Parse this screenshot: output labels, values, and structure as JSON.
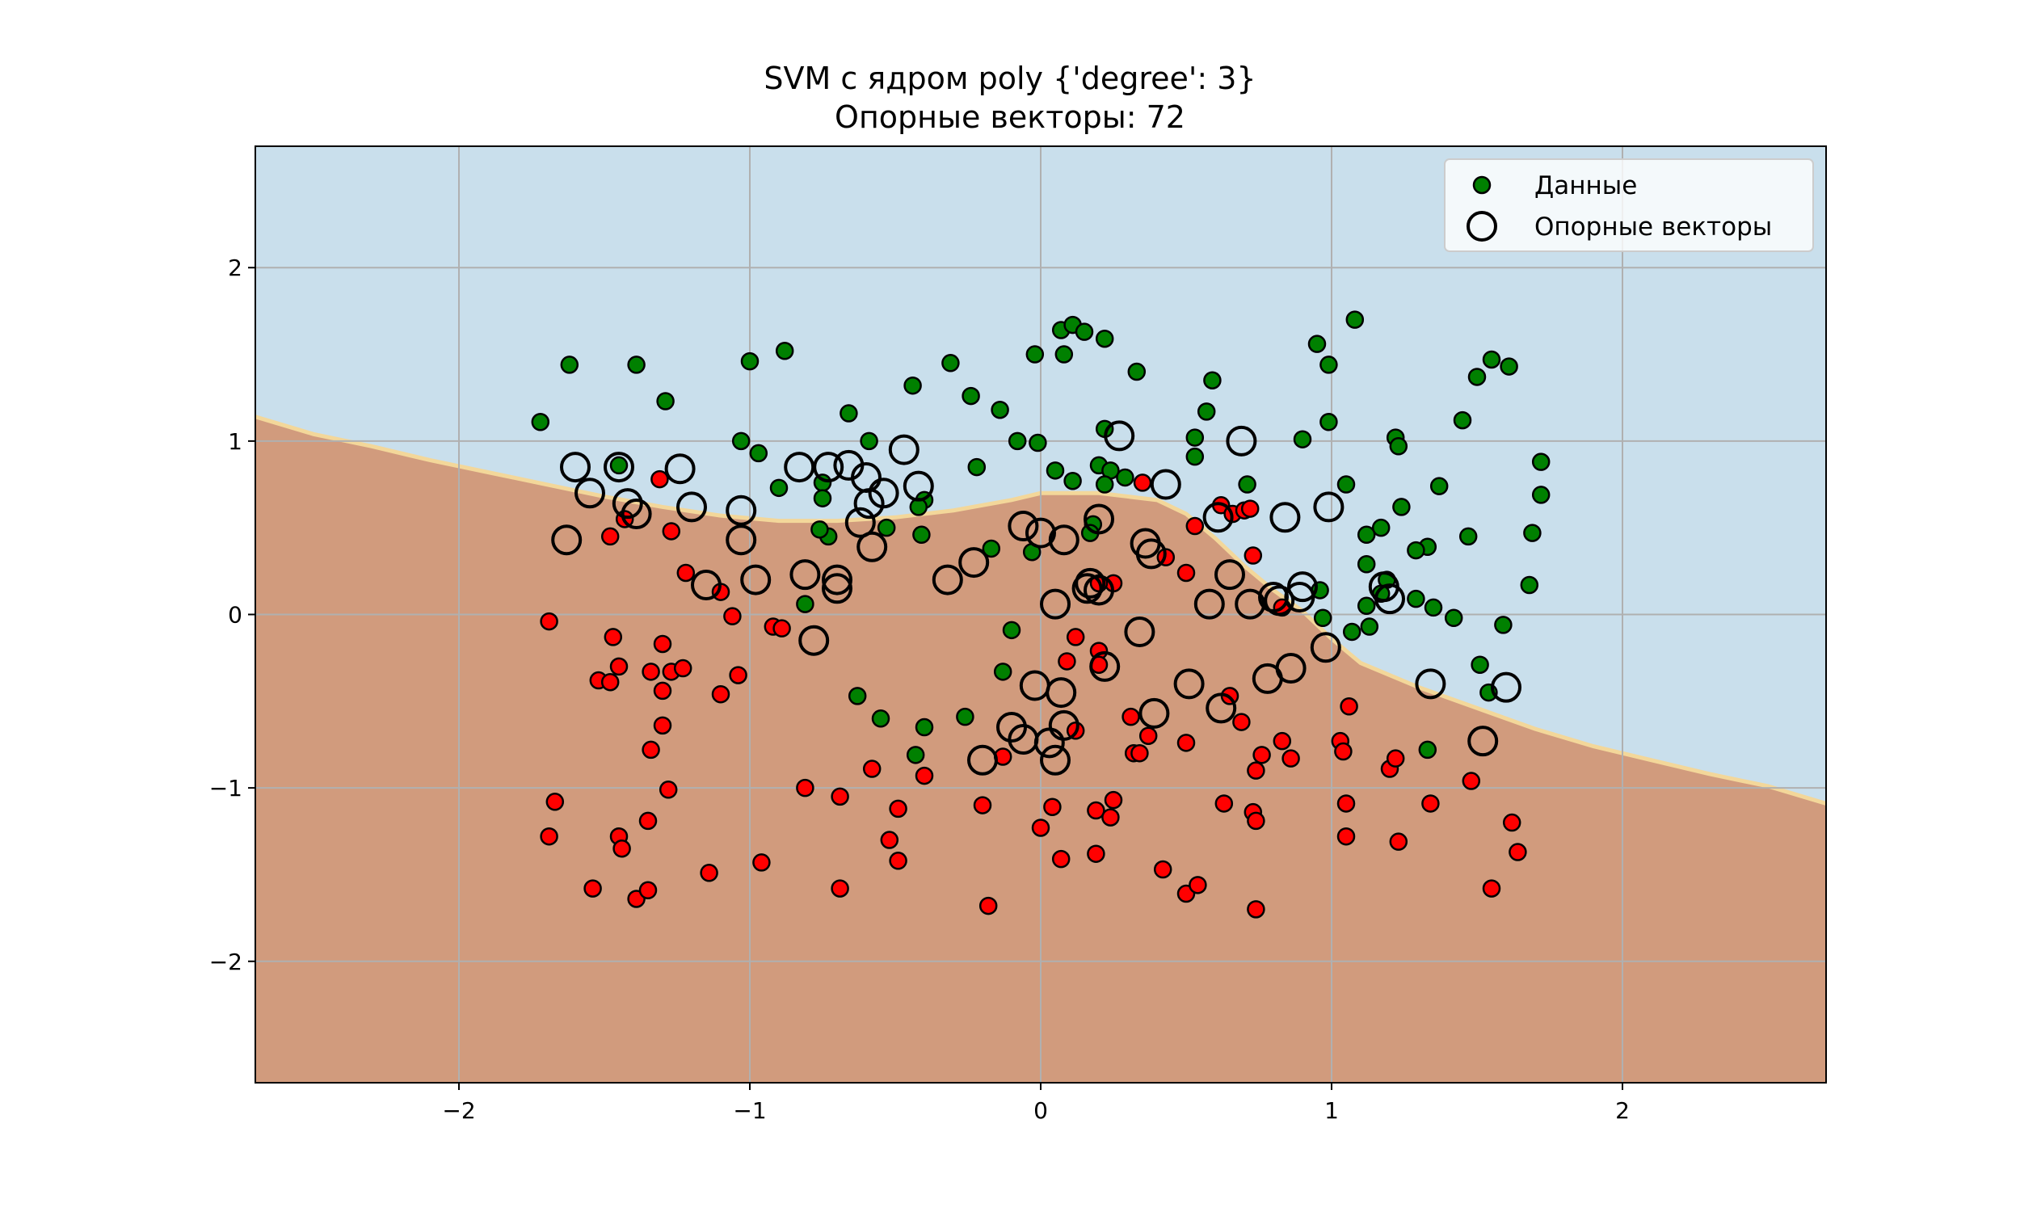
{
  "chart_data": {
    "type": "scatter",
    "title": "SVM с ядром poly {'degree': 3}",
    "subtitle": "Опорные векторы: 72",
    "xlim": [
      -2.7,
      2.7
    ],
    "ylim": [
      -2.7,
      2.7
    ],
    "xticks": [
      -2,
      -1,
      0,
      1,
      2
    ],
    "yticks": [
      -2,
      -1,
      0,
      1,
      2
    ],
    "xtick_labels": [
      "−2",
      "−1",
      "0",
      "1",
      "2"
    ],
    "ytick_labels": [
      "−2",
      "−1",
      "0",
      "1",
      "2"
    ],
    "grid": true,
    "legend_position": "top-right",
    "legend": [
      {
        "label": "Данные",
        "marker": "filled-circle"
      },
      {
        "label": "Опорные векторы",
        "marker": "hollow-circle"
      }
    ],
    "colors": {
      "class_positive_region": "#c9dfec",
      "class_negative_region": "#d19b7d",
      "boundary": "#f3d79a",
      "class_positive_points": "#008000",
      "class_negative_points": "#ff0000",
      "support_vector_edge": "#000000"
    },
    "decision_boundary": [
      [
        -2.7,
        1.14
      ],
      [
        -2.5,
        1.04
      ],
      [
        -2.3,
        0.97
      ],
      [
        -2.1,
        0.89
      ],
      [
        -1.9,
        0.82
      ],
      [
        -1.7,
        0.75
      ],
      [
        -1.5,
        0.68
      ],
      [
        -1.3,
        0.62
      ],
      [
        -1.1,
        0.57
      ],
      [
        -0.9,
        0.54
      ],
      [
        -0.7,
        0.54
      ],
      [
        -0.5,
        0.56
      ],
      [
        -0.3,
        0.6
      ],
      [
        -0.1,
        0.66
      ],
      [
        0.0,
        0.7
      ],
      [
        0.2,
        0.7
      ],
      [
        0.4,
        0.66
      ],
      [
        0.5,
        0.58
      ],
      [
        0.6,
        0.44
      ],
      [
        0.7,
        0.28
      ],
      [
        0.8,
        0.14
      ],
      [
        0.9,
        0.02
      ],
      [
        1.0,
        -0.14
      ],
      [
        1.1,
        -0.28
      ],
      [
        1.3,
        -0.42
      ],
      [
        1.5,
        -0.54
      ],
      [
        1.7,
        -0.66
      ],
      [
        1.9,
        -0.76
      ],
      [
        2.1,
        -0.84
      ],
      [
        2.3,
        -0.92
      ],
      [
        2.5,
        -0.99
      ],
      [
        2.7,
        -1.09
      ]
    ],
    "series": [
      {
        "name": "Данные",
        "class": "positive",
        "points": [
          [
            -1.72,
            1.11
          ],
          [
            -1.62,
            1.44
          ],
          [
            -1.39,
            1.44
          ],
          [
            -1.29,
            1.23
          ],
          [
            -1.45,
            0.86
          ],
          [
            -1.0,
            1.46
          ],
          [
            -0.88,
            1.52
          ],
          [
            -1.03,
            1.0
          ],
          [
            -0.97,
            0.93
          ],
          [
            -0.9,
            0.73
          ],
          [
            -0.66,
            1.16
          ],
          [
            -0.59,
            1.0
          ],
          [
            -0.44,
            1.32
          ],
          [
            -0.31,
            1.45
          ],
          [
            -0.24,
            1.26
          ],
          [
            -0.14,
            1.18
          ],
          [
            -0.22,
            0.85
          ],
          [
            -0.08,
            1.0
          ],
          [
            -0.02,
            1.5
          ],
          [
            0.07,
            1.64
          ],
          [
            0.11,
            1.67
          ],
          [
            0.15,
            1.63
          ],
          [
            0.22,
            1.59
          ],
          [
            0.08,
            1.5
          ],
          [
            0.33,
            1.4
          ],
          [
            0.59,
            1.35
          ],
          [
            0.53,
            1.02
          ],
          [
            0.57,
            1.17
          ],
          [
            0.53,
            0.91
          ],
          [
            0.22,
            1.07
          ],
          [
            0.2,
            0.86
          ],
          [
            0.24,
            0.83
          ],
          [
            0.29,
            0.79
          ],
          [
            0.22,
            0.75
          ],
          [
            0.11,
            0.77
          ],
          [
            0.05,
            0.83
          ],
          [
            -0.01,
            0.99
          ],
          [
            0.71,
            0.75
          ],
          [
            0.95,
            1.56
          ],
          [
            1.08,
            1.7
          ],
          [
            0.99,
            1.44
          ],
          [
            0.99,
            1.11
          ],
          [
            0.9,
            1.01
          ],
          [
            1.22,
            1.02
          ],
          [
            1.23,
            0.97
          ],
          [
            1.05,
            0.75
          ],
          [
            1.37,
            0.74
          ],
          [
            1.24,
            0.62
          ],
          [
            1.45,
            1.12
          ],
          [
            1.5,
            1.37
          ],
          [
            1.55,
            1.47
          ],
          [
            1.61,
            1.43
          ],
          [
            1.72,
            0.88
          ],
          [
            1.72,
            0.69
          ],
          [
            1.69,
            0.47
          ],
          [
            1.68,
            0.17
          ],
          [
            1.59,
            -0.06
          ],
          [
            1.47,
            0.45
          ],
          [
            1.33,
            0.39
          ],
          [
            1.29,
            0.37
          ],
          [
            1.17,
            0.5
          ],
          [
            1.12,
            0.46
          ],
          [
            1.12,
            0.29
          ],
          [
            1.19,
            0.2
          ],
          [
            1.17,
            0.12
          ],
          [
            1.12,
            0.05
          ],
          [
            1.13,
            -0.07
          ],
          [
            1.07,
            -0.1
          ],
          [
            0.96,
            0.14
          ],
          [
            0.97,
            -0.02
          ],
          [
            1.29,
            0.09
          ],
          [
            1.35,
            0.04
          ],
          [
            1.42,
            -0.02
          ],
          [
            1.51,
            -0.29
          ],
          [
            1.54,
            -0.45
          ],
          [
            1.33,
            -0.78
          ],
          [
            -0.75,
            0.76
          ],
          [
            -0.75,
            0.67
          ],
          [
            -0.73,
            0.45
          ],
          [
            -0.76,
            0.49
          ],
          [
            -0.53,
            0.5
          ],
          [
            -0.4,
            0.66
          ],
          [
            -0.42,
            0.62
          ],
          [
            -0.41,
            0.46
          ],
          [
            -0.17,
            0.38
          ],
          [
            -0.03,
            0.36
          ],
          [
            0.18,
            0.52
          ],
          [
            0.17,
            0.47
          ],
          [
            -0.81,
            0.06
          ],
          [
            -0.1,
            -0.09
          ],
          [
            -0.13,
            -0.33
          ],
          [
            -0.63,
            -0.47
          ],
          [
            -0.55,
            -0.6
          ],
          [
            -0.4,
            -0.65
          ],
          [
            -0.43,
            -0.81
          ],
          [
            -0.26,
            -0.59
          ]
        ]
      },
      {
        "name": "",
        "class": "negative",
        "points": [
          [
            -1.69,
            -0.04
          ],
          [
            -1.48,
            0.45
          ],
          [
            -1.31,
            0.78
          ],
          [
            -1.43,
            0.55
          ],
          [
            -1.27,
            0.48
          ],
          [
            -1.22,
            0.24
          ],
          [
            -1.1,
            0.13
          ],
          [
            -1.06,
            -0.01
          ],
          [
            -1.47,
            -0.13
          ],
          [
            -1.3,
            -0.17
          ],
          [
            -1.45,
            -0.3
          ],
          [
            -1.52,
            -0.38
          ],
          [
            -1.48,
            -0.39
          ],
          [
            -1.34,
            -0.33
          ],
          [
            -1.27,
            -0.33
          ],
          [
            -1.23,
            -0.31
          ],
          [
            -1.3,
            -0.44
          ],
          [
            -1.1,
            -0.46
          ],
          [
            -1.04,
            -0.35
          ],
          [
            -0.92,
            -0.07
          ],
          [
            -0.89,
            -0.08
          ],
          [
            -1.3,
            -0.64
          ],
          [
            -1.34,
            -0.78
          ],
          [
            -1.28,
            -1.01
          ],
          [
            -1.67,
            -1.08
          ],
          [
            -1.69,
            -1.28
          ],
          [
            -1.35,
            -1.19
          ],
          [
            -1.45,
            -1.28
          ],
          [
            -1.44,
            -1.35
          ],
          [
            -1.54,
            -1.58
          ],
          [
            -1.39,
            -1.64
          ],
          [
            -1.35,
            -1.59
          ],
          [
            -1.14,
            -1.49
          ],
          [
            -0.96,
            -1.43
          ],
          [
            -0.81,
            -1.0
          ],
          [
            -0.69,
            -1.05
          ],
          [
            -0.69,
            -1.58
          ],
          [
            -0.58,
            -0.89
          ],
          [
            -0.49,
            -1.12
          ],
          [
            -0.52,
            -1.3
          ],
          [
            -0.49,
            -1.42
          ],
          [
            -0.4,
            -0.93
          ],
          [
            -0.2,
            -1.1
          ],
          [
            -0.18,
            -1.68
          ],
          [
            -0.13,
            -0.82
          ],
          [
            0.0,
            -1.23
          ],
          [
            0.04,
            -1.11
          ],
          [
            0.07,
            -1.41
          ],
          [
            0.12,
            -0.67
          ],
          [
            0.19,
            -1.13
          ],
          [
            0.19,
            -1.38
          ],
          [
            0.24,
            -1.17
          ],
          [
            0.25,
            -1.07
          ],
          [
            0.31,
            -0.59
          ],
          [
            0.32,
            -0.8
          ],
          [
            0.34,
            -0.8
          ],
          [
            0.37,
            -0.7
          ],
          [
            0.42,
            -1.47
          ],
          [
            0.5,
            -0.74
          ],
          [
            0.5,
            -1.61
          ],
          [
            0.54,
            -1.56
          ],
          [
            0.63,
            -1.09
          ],
          [
            0.73,
            -1.14
          ],
          [
            0.74,
            -1.19
          ],
          [
            0.74,
            -1.7
          ],
          [
            0.74,
            -0.9
          ],
          [
            0.76,
            -0.81
          ],
          [
            0.83,
            -0.73
          ],
          [
            0.86,
            -0.83
          ],
          [
            0.65,
            -0.47
          ],
          [
            0.69,
            -0.62
          ],
          [
            1.03,
            -0.73
          ],
          [
            1.04,
            -0.79
          ],
          [
            1.05,
            -1.09
          ],
          [
            1.05,
            -1.28
          ],
          [
            1.06,
            -0.53
          ],
          [
            1.2,
            -0.89
          ],
          [
            1.22,
            -0.83
          ],
          [
            1.23,
            -1.31
          ],
          [
            1.34,
            -1.09
          ],
          [
            1.48,
            -0.96
          ],
          [
            1.55,
            -1.58
          ],
          [
            1.62,
            -1.2
          ],
          [
            1.64,
            -1.37
          ],
          [
            0.12,
            -0.13
          ],
          [
            0.2,
            -0.21
          ],
          [
            0.09,
            -0.27
          ],
          [
            0.2,
            -0.29
          ],
          [
            0.25,
            0.18
          ],
          [
            0.2,
            0.18
          ],
          [
            0.35,
            0.76
          ],
          [
            0.43,
            0.33
          ],
          [
            0.5,
            0.24
          ],
          [
            0.53,
            0.51
          ],
          [
            0.62,
            0.63
          ],
          [
            0.66,
            0.58
          ],
          [
            0.7,
            0.6
          ],
          [
            0.72,
            0.61
          ],
          [
            0.73,
            0.34
          ],
          [
            0.83,
            0.04
          ]
        ]
      },
      {
        "name": "Опорные векторы",
        "class": "support",
        "points": [
          [
            -1.63,
            0.43
          ],
          [
            -1.6,
            0.85
          ],
          [
            -1.55,
            0.7
          ],
          [
            -1.45,
            0.85
          ],
          [
            -1.42,
            0.64
          ],
          [
            -1.39,
            0.58
          ],
          [
            -1.24,
            0.84
          ],
          [
            -1.2,
            0.62
          ],
          [
            -1.15,
            0.17
          ],
          [
            -1.03,
            0.6
          ],
          [
            -1.03,
            0.43
          ],
          [
            -0.98,
            0.2
          ],
          [
            -0.83,
            0.85
          ],
          [
            -0.81,
            0.23
          ],
          [
            -0.78,
            -0.15
          ],
          [
            -0.73,
            0.85
          ],
          [
            -0.7,
            0.2
          ],
          [
            -0.7,
            0.15
          ],
          [
            -0.66,
            0.86
          ],
          [
            -0.62,
            0.53
          ],
          [
            -0.6,
            0.79
          ],
          [
            -0.59,
            0.64
          ],
          [
            -0.58,
            0.39
          ],
          [
            -0.54,
            0.7
          ],
          [
            -0.47,
            0.95
          ],
          [
            -0.42,
            0.74
          ],
          [
            -0.32,
            0.2
          ],
          [
            -0.23,
            0.3
          ],
          [
            -0.2,
            -0.84
          ],
          [
            -0.1,
            -0.65
          ],
          [
            -0.06,
            0.51
          ],
          [
            -0.06,
            -0.72
          ],
          [
            -0.02,
            -0.41
          ],
          [
            0.0,
            0.47
          ],
          [
            0.03,
            -0.74
          ],
          [
            0.05,
            -0.84
          ],
          [
            0.05,
            0.06
          ],
          [
            0.07,
            -0.45
          ],
          [
            0.08,
            -0.64
          ],
          [
            0.08,
            0.43
          ],
          [
            0.16,
            0.15
          ],
          [
            0.17,
            0.18
          ],
          [
            0.2,
            0.14
          ],
          [
            0.2,
            0.55
          ],
          [
            0.22,
            -0.3
          ],
          [
            0.27,
            1.03
          ],
          [
            0.34,
            -0.1
          ],
          [
            0.36,
            0.41
          ],
          [
            0.38,
            0.35
          ],
          [
            0.39,
            -0.57
          ],
          [
            0.43,
            0.75
          ],
          [
            0.51,
            -0.4
          ],
          [
            0.58,
            0.06
          ],
          [
            0.62,
            -0.54
          ],
          [
            0.61,
            0.56
          ],
          [
            0.65,
            0.23
          ],
          [
            0.69,
            1.0
          ],
          [
            0.72,
            0.06
          ],
          [
            0.78,
            -0.37
          ],
          [
            0.8,
            0.1
          ],
          [
            0.82,
            0.08
          ],
          [
            0.84,
            0.56
          ],
          [
            0.86,
            -0.31
          ],
          [
            0.89,
            0.1
          ],
          [
            0.9,
            0.16
          ],
          [
            0.98,
            -0.19
          ],
          [
            0.99,
            0.62
          ],
          [
            1.18,
            0.16
          ],
          [
            1.2,
            0.09
          ],
          [
            1.34,
            -0.4
          ],
          [
            1.52,
            -0.73
          ],
          [
            1.6,
            -0.42
          ]
        ]
      }
    ]
  }
}
